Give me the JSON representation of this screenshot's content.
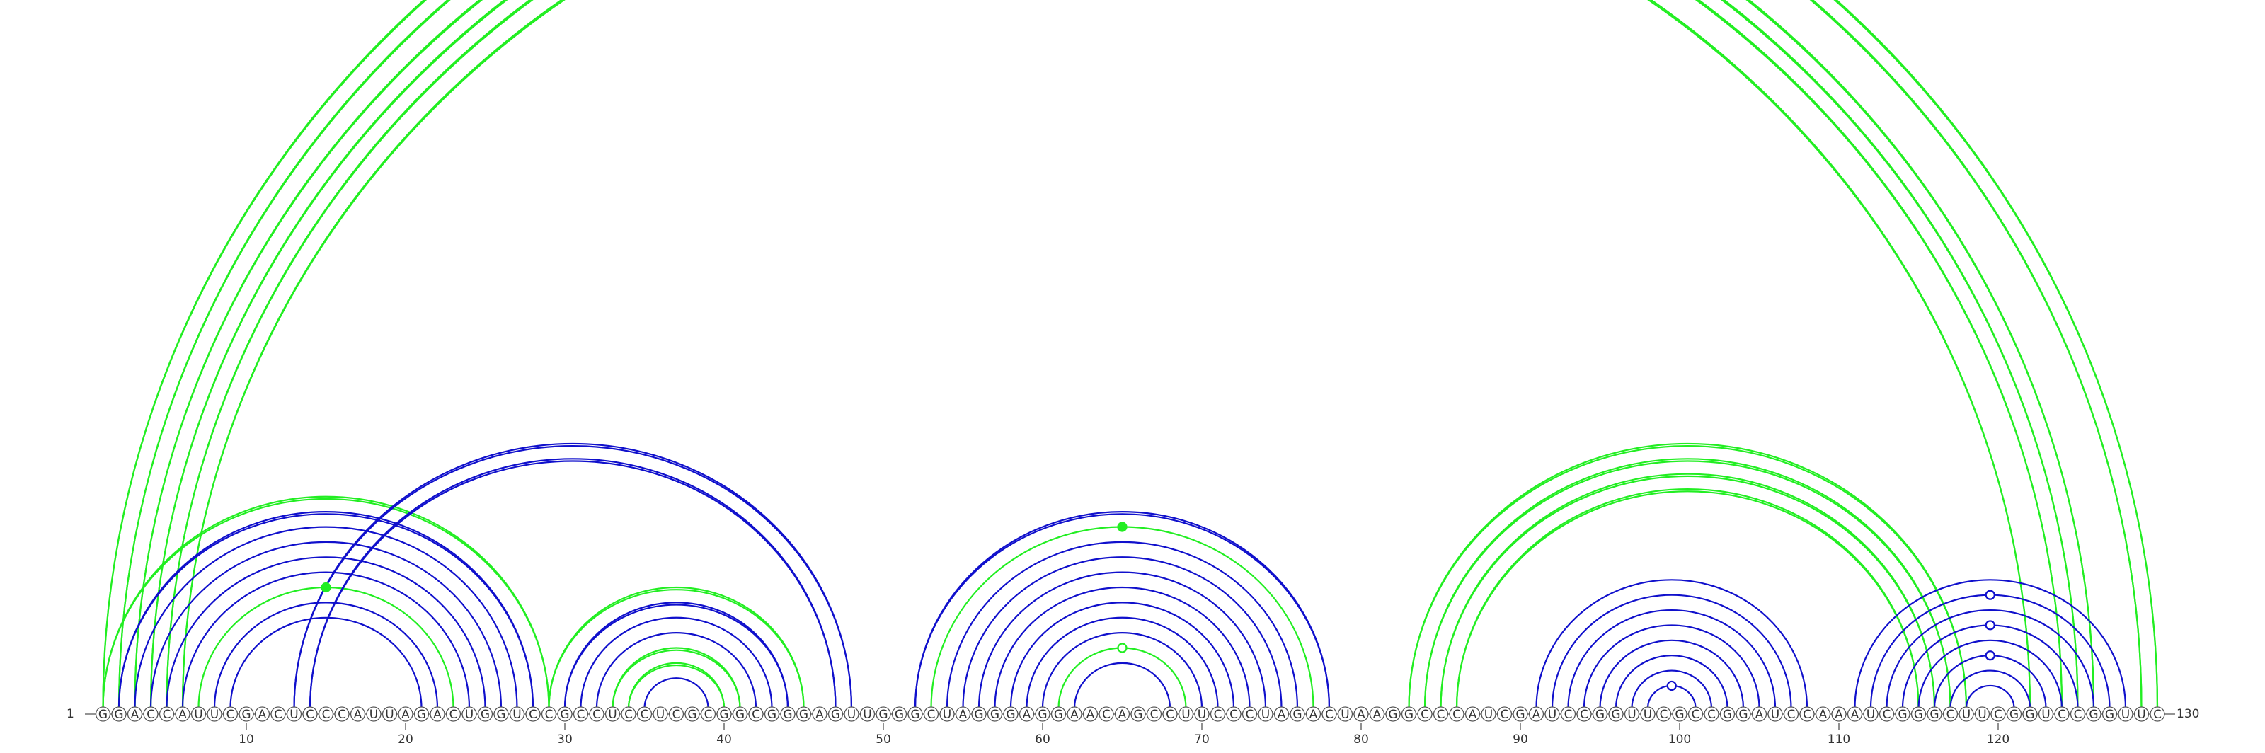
{
  "diagram": {
    "type": "arc-diagram",
    "sequence": "GGACCAUUCGACUCCCAUUAGACUGGUCCGCCUCCUCGCGGCGGGAGUUGGGCUAGGGAGGAACAGCCUUCCCUAGACUAAGGCCCAUCGAUCCGGUUCGCCGGAUCCAAAUCGGGCUUCGGUCCGGUUC",
    "start_label": "1",
    "end_label": "130",
    "ticks": [
      10,
      20,
      30,
      40,
      50,
      60,
      70,
      80,
      90,
      100,
      110,
      120
    ],
    "colors": {
      "green": "#22ee22",
      "blue": "#1010cc"
    },
    "arcs": [
      {
        "i": 1,
        "j": 130,
        "color": "green",
        "lines": 2
      },
      {
        "i": 2,
        "j": 129,
        "color": "green",
        "lines": 2
      },
      {
        "i": 3,
        "j": 126,
        "color": "green",
        "lines": 2
      },
      {
        "i": 4,
        "j": 125,
        "color": "green",
        "lines": 2
      },
      {
        "i": 5,
        "j": 124,
        "color": "green",
        "lines": 2
      },
      {
        "i": 6,
        "j": 122,
        "color": "green",
        "lines": 2
      },
      {
        "i": 1,
        "j": 29,
        "color": "green",
        "lines": 2
      },
      {
        "i": 2,
        "j": 28,
        "color": "blue",
        "lines": 2
      },
      {
        "i": 3,
        "j": 27,
        "color": "blue",
        "lines": 1
      },
      {
        "i": 4,
        "j": 26,
        "color": "blue",
        "lines": 1
      },
      {
        "i": 5,
        "j": 25,
        "color": "blue",
        "lines": 1
      },
      {
        "i": 6,
        "j": 24,
        "color": "blue",
        "lines": 1
      },
      {
        "i": 7,
        "j": 23,
        "color": "green",
        "lines": 1
      },
      {
        "i": 8,
        "j": 22,
        "color": "blue",
        "lines": 1
      },
      {
        "i": 9,
        "j": 21,
        "color": "blue",
        "lines": 1
      },
      {
        "i": 13,
        "j": 48,
        "color": "blue",
        "lines": 2
      },
      {
        "i": 14,
        "j": 47,
        "color": "blue",
        "lines": 2
      },
      {
        "i": 29,
        "j": 45,
        "color": "green",
        "lines": 2
      },
      {
        "i": 30,
        "j": 44,
        "color": "blue",
        "lines": 2
      },
      {
        "i": 31,
        "j": 43,
        "color": "blue",
        "lines": 1
      },
      {
        "i": 32,
        "j": 42,
        "color": "blue",
        "lines": 1
      },
      {
        "i": 33,
        "j": 41,
        "color": "green",
        "lines": 2
      },
      {
        "i": 34,
        "j": 40,
        "color": "green",
        "lines": 2
      },
      {
        "i": 35,
        "j": 39,
        "color": "blue",
        "lines": 1
      },
      {
        "i": 52,
        "j": 78,
        "color": "blue",
        "lines": 2
      },
      {
        "i": 53,
        "j": 77,
        "color": "green",
        "lines": 1
      },
      {
        "i": 54,
        "j": 76,
        "color": "blue",
        "lines": 1
      },
      {
        "i": 55,
        "j": 75,
        "color": "blue",
        "lines": 1
      },
      {
        "i": 56,
        "j": 74,
        "color": "blue",
        "lines": 1
      },
      {
        "i": 57,
        "j": 73,
        "color": "blue",
        "lines": 1
      },
      {
        "i": 58,
        "j": 72,
        "color": "blue",
        "lines": 1
      },
      {
        "i": 59,
        "j": 71,
        "color": "blue",
        "lines": 1
      },
      {
        "i": 60,
        "j": 70,
        "color": "blue",
        "lines": 1
      },
      {
        "i": 61,
        "j": 69,
        "color": "green",
        "lines": 1
      },
      {
        "i": 62,
        "j": 68,
        "color": "blue",
        "lines": 1
      },
      {
        "i": 83,
        "j": 118,
        "color": "green",
        "lines": 2
      },
      {
        "i": 84,
        "j": 117,
        "color": "green",
        "lines": 2
      },
      {
        "i": 85,
        "j": 116,
        "color": "green",
        "lines": 2
      },
      {
        "i": 86,
        "j": 115,
        "color": "green",
        "lines": 2
      },
      {
        "i": 91,
        "j": 108,
        "color": "blue",
        "lines": 1
      },
      {
        "i": 92,
        "j": 107,
        "color": "blue",
        "lines": 1
      },
      {
        "i": 93,
        "j": 106,
        "color": "blue",
        "lines": 1
      },
      {
        "i": 94,
        "j": 105,
        "color": "blue",
        "lines": 1
      },
      {
        "i": 95,
        "j": 104,
        "color": "blue",
        "lines": 1
      },
      {
        "i": 96,
        "j": 103,
        "color": "blue",
        "lines": 1
      },
      {
        "i": 97,
        "j": 102,
        "color": "blue",
        "lines": 1
      },
      {
        "i": 98,
        "j": 101,
        "color": "blue",
        "lines": 1
      },
      {
        "i": 111,
        "j": 128,
        "color": "blue",
        "lines": 1
      },
      {
        "i": 112,
        "j": 127,
        "color": "blue",
        "lines": 1
      },
      {
        "i": 113,
        "j": 126,
        "color": "blue",
        "lines": 1
      },
      {
        "i": 114,
        "j": 125,
        "color": "blue",
        "lines": 1
      },
      {
        "i": 115,
        "j": 124,
        "color": "blue",
        "lines": 1
      },
      {
        "i": 116,
        "j": 123,
        "color": "blue",
        "lines": 1
      },
      {
        "i": 117,
        "j": 122,
        "color": "blue",
        "lines": 1
      },
      {
        "i": 118,
        "j": 121,
        "color": "blue",
        "lines": 1
      }
    ],
    "markers": [
      {
        "i": 1,
        "j": 130,
        "color": "green",
        "style": "open"
      },
      {
        "i": 7,
        "j": 23,
        "color": "green",
        "style": "filled"
      },
      {
        "i": 53,
        "j": 77,
        "color": "green",
        "style": "filled"
      },
      {
        "i": 61,
        "j": 69,
        "color": "green",
        "style": "open"
      },
      {
        "i": 98,
        "j": 101,
        "color": "blue",
        "style": "open"
      },
      {
        "i": 112,
        "j": 127,
        "color": "blue",
        "style": "open"
      },
      {
        "i": 114,
        "j": 125,
        "color": "blue",
        "style": "open"
      },
      {
        "i": 116,
        "j": 123,
        "color": "blue",
        "style": "open"
      }
    ]
  }
}
